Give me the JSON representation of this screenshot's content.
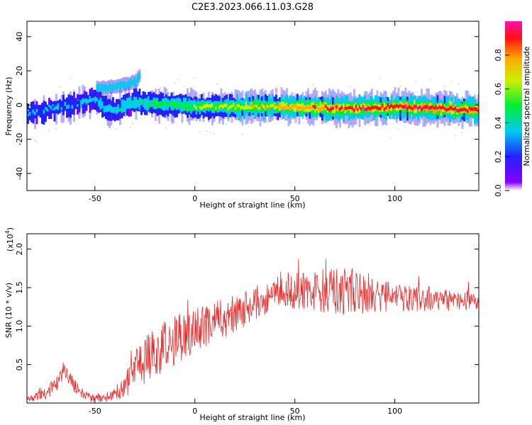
{
  "title": "C2E3.2023.066.11.03.G28",
  "colors": {
    "snr_line": "#ee2a2a",
    "spec_low": "#7d00ff",
    "spec_mid": "#00ddee",
    "spec_high": "#ee1111"
  },
  "chart_data": [
    {
      "type": "heatmap",
      "xlabel": "Height of straight line (km)",
      "ylabel": "Frequency (Hz)",
      "xlim": [
        -84,
        142
      ],
      "ylim": [
        -50,
        49
      ],
      "xticks": [
        -50,
        0,
        50,
        100
      ],
      "yticks": [
        -40,
        -20,
        0,
        20,
        40
      ],
      "xtick_labels": [
        "-50",
        "0",
        "50",
        "100"
      ],
      "ytick_labels": [
        "-40",
        "-20",
        "0",
        "20",
        "40"
      ],
      "colorbar": {
        "label": "Normalized spectral amplitude",
        "range": [
          0,
          1
        ],
        "ticks": [
          0.0,
          0.2,
          0.4,
          0.6,
          0.8
        ],
        "tick_labels": [
          "0.0",
          "0.2",
          "0.4",
          "0.6",
          "0.8"
        ]
      },
      "ridge": {
        "x": [
          -84,
          -75,
          -65,
          -55,
          -50,
          -45,
          -40,
          -35,
          -30,
          -25,
          -10,
          0,
          25,
          50,
          75,
          100,
          142
        ],
        "y": [
          -5,
          -3,
          -1,
          2,
          3,
          -2,
          -3,
          0,
          2,
          1,
          0,
          -1,
          -1,
          -1,
          -2,
          -1,
          -3
        ]
      },
      "upper_branch": {
        "x": [
          -50,
          -45,
          -40,
          -35,
          -30,
          -28
        ],
        "y": [
          10,
          10,
          11,
          12,
          14,
          17
        ]
      }
    },
    {
      "type": "line",
      "xlabel": "Height of straight line (km)",
      "ylabel": "SNR (10 * v/v)",
      "y_multiplier": "(x10",
      "y_multiplier_exp": "4",
      "y_multiplier_close": ")",
      "xlim": [
        -84,
        142
      ],
      "ylim": [
        0,
        2.2
      ],
      "xticks": [
        -50,
        0,
        50,
        100
      ],
      "yticks": [
        0.5,
        1.0,
        1.5,
        2.0
      ],
      "xtick_labels": [
        "-50",
        "0",
        "50",
        "100"
      ],
      "ytick_labels": [
        "0.5",
        "1.0",
        "1.5",
        "2.0"
      ],
      "series": [
        {
          "trend_x": [
            -84,
            -75,
            -70,
            -65,
            -60,
            -55,
            -50,
            -45,
            -40,
            -35,
            -30,
            -25,
            -20,
            -15,
            -10,
            -5,
            0,
            10,
            20,
            30,
            40,
            50,
            60,
            70,
            80,
            90,
            100,
            110,
            120,
            130,
            142
          ],
          "trend_y": [
            0.05,
            0.12,
            0.22,
            0.42,
            0.22,
            0.08,
            0.05,
            0.07,
            0.12,
            0.22,
            0.45,
            0.55,
            0.65,
            0.75,
            0.8,
            0.9,
            0.95,
            1.05,
            1.15,
            1.3,
            1.4,
            1.45,
            1.45,
            1.45,
            1.45,
            1.42,
            1.38,
            1.35,
            1.35,
            1.32,
            1.33
          ],
          "spread_x": [
            -84,
            -70,
            -60,
            -50,
            -40,
            -30,
            -20,
            -10,
            0,
            20,
            40,
            60,
            70,
            80,
            90,
            100,
            142
          ],
          "spread_y": [
            0.04,
            0.1,
            0.1,
            0.05,
            0.08,
            0.25,
            0.35,
            0.35,
            0.3,
            0.25,
            0.2,
            0.28,
            0.32,
            0.3,
            0.25,
            0.18,
            0.12
          ]
        }
      ]
    }
  ]
}
